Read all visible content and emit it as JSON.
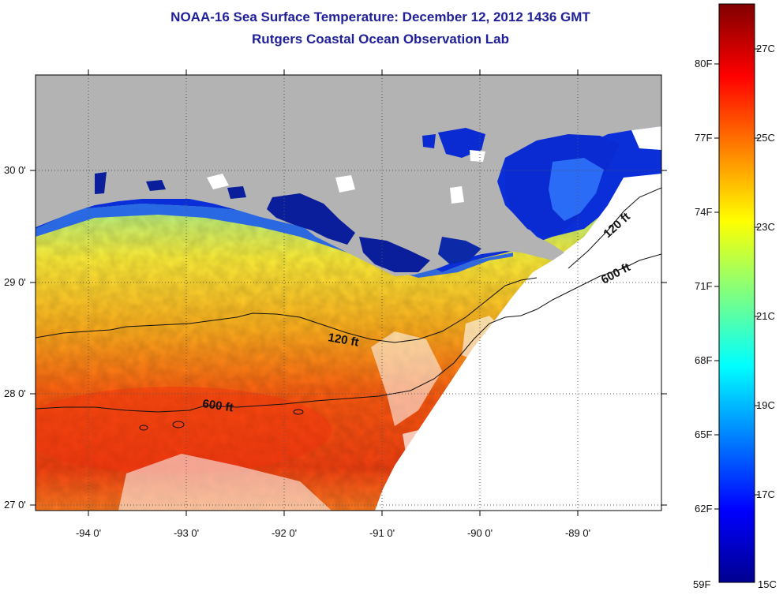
{
  "title_line1": "NOAA-16 Sea Surface Temperature:  December 12, 2012 1436 GMT",
  "title_line2": "Rutgers Coastal Ocean Observation Lab",
  "map": {
    "lat_labels": [
      "30 0'",
      "29 0'",
      "28 0'",
      "27 0'"
    ],
    "lon_labels": [
      "-94 0'",
      "-93 0'",
      "-92 0'",
      "-91 0'",
      "-90 0'",
      "-89 0'"
    ],
    "contour_labels": [
      "120 ft",
      "600 ft",
      "120 ft",
      "600 ft"
    ],
    "colors": {
      "land": "#b3b3b3",
      "no_data": "#ffffff",
      "contour": "#111111"
    }
  },
  "colorbar": {
    "fahrenheit_labels": [
      "80F",
      "77F",
      "74F",
      "71F",
      "68F",
      "65F",
      "62F",
      "59F"
    ],
    "celsius_labels": [
      "27C",
      "25C",
      "23C",
      "21C",
      "19C",
      "17C",
      "15C"
    ],
    "range_celsius": [
      15,
      28
    ],
    "colors": [
      "#00008f",
      "#0000ff",
      "#0080ff",
      "#00ffff",
      "#80ff80",
      "#ffff00",
      "#ff8000",
      "#ff0000",
      "#800000"
    ]
  }
}
